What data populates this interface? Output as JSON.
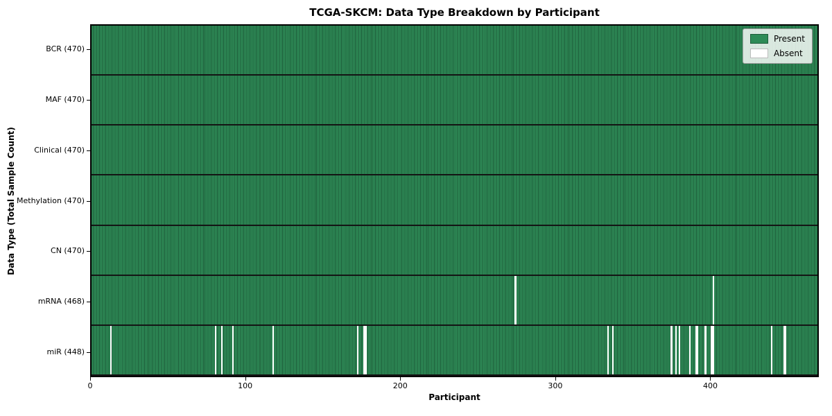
{
  "chart_data": {
    "type": "heatmap",
    "title": "TCGA-SKCM: Data Type Breakdown by Participant",
    "xlabel": "Participant",
    "ylabel": "Data Type (Total Sample Count)",
    "x_ticks": [
      0,
      100,
      200,
      300,
      400
    ],
    "x_range": [
      0,
      470
    ],
    "n_participants": 470,
    "legend": [
      {
        "label": "Present",
        "color": "#2e8b57"
      },
      {
        "label": "Absent",
        "color": "#ffffff"
      }
    ],
    "legend_position": "upper right",
    "grid": false,
    "rows": [
      {
        "label": "BCR (470)",
        "data_type": "BCR",
        "total": 470,
        "absent_indices": []
      },
      {
        "label": "MAF (470)",
        "data_type": "MAF",
        "total": 470,
        "absent_indices": []
      },
      {
        "label": "Clinical (470)",
        "data_type": "Clinical",
        "total": 470,
        "absent_indices": []
      },
      {
        "label": "Methylation (470)",
        "data_type": "Methylation",
        "total": 470,
        "absent_indices": []
      },
      {
        "label": "CN (470)",
        "data_type": "CN",
        "total": 470,
        "absent_indices": []
      },
      {
        "label": "mRNA (468)",
        "data_type": "mRNA",
        "total": 468,
        "absent_indices": [
          274,
          402
        ]
      },
      {
        "label": "miR (448)",
        "data_type": "miR",
        "total": 448,
        "absent_indices": [
          12,
          80,
          84,
          91,
          117,
          172,
          176,
          177,
          334,
          337,
          375,
          378,
          380,
          387,
          391,
          392,
          397,
          401,
          402,
          440,
          448,
          449
        ]
      }
    ],
    "colors": {
      "present": "#2e8b57",
      "present_edge": "#1d5c39",
      "absent": "#ffffff",
      "row_border": "#141414",
      "plot_border": "#000000"
    }
  }
}
